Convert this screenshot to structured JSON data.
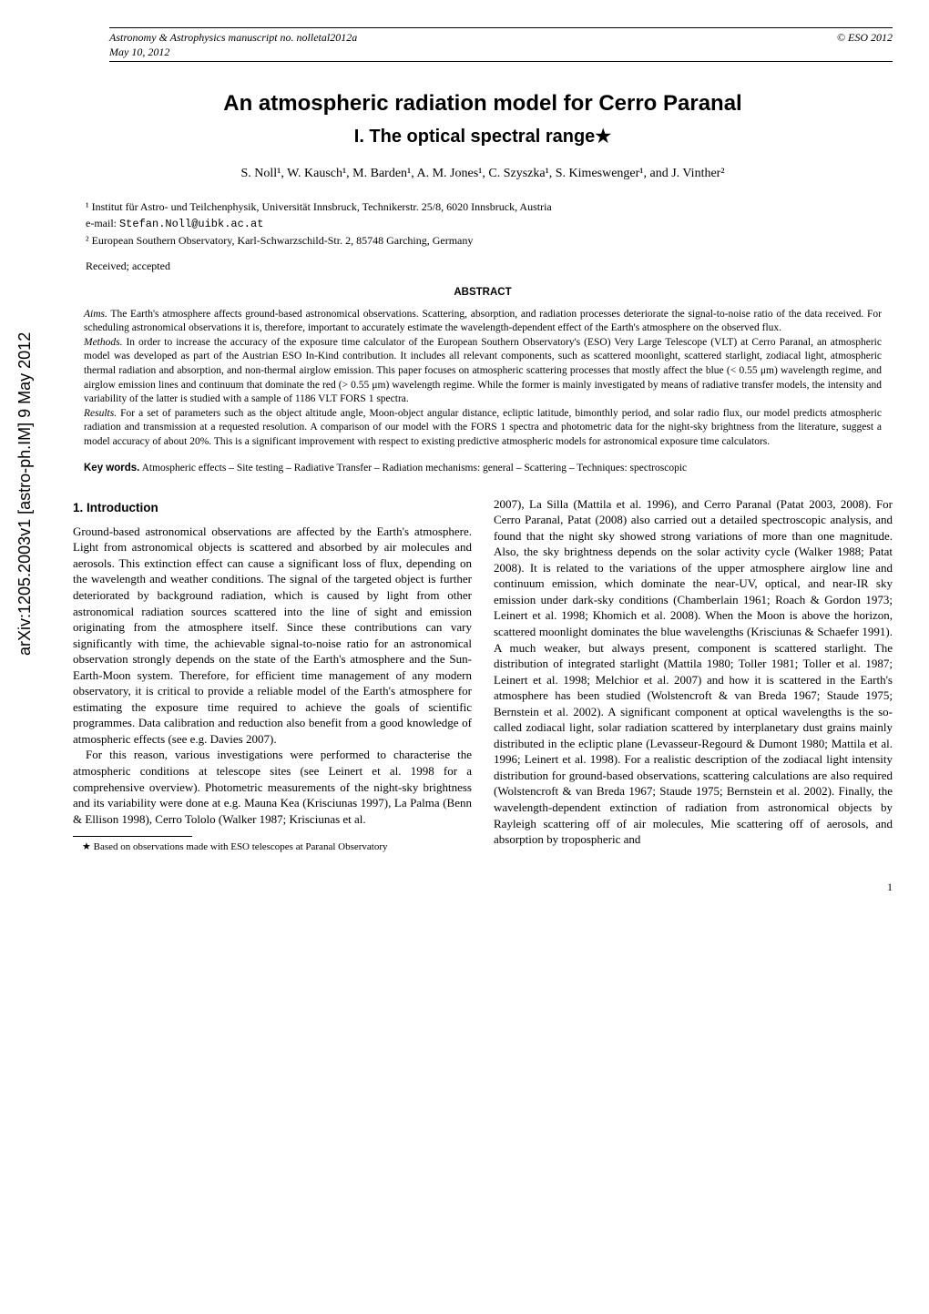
{
  "arxiv": "arXiv:1205.2003v1  [astro-ph.IM]  9 May 2012",
  "header": {
    "left": "Astronomy & Astrophysics manuscript no. nolletal2012a",
    "left2": "May 10, 2012",
    "right": "© ESO 2012"
  },
  "title": "An atmospheric radiation model for Cerro Paranal",
  "subtitle": "I. The optical spectral range",
  "subtitle_star": "★",
  "authors": "S. Noll¹, W. Kausch¹, M. Barden¹, A. M. Jones¹, C. Szyszka¹, S. Kimeswenger¹, and J. Vinther²",
  "aff1": "¹ Institut für Astro- und Teilchenphysik, Universität Innsbruck, Technikerstr. 25/8, 6020 Innsbruck, Austria",
  "email_label": "e-mail:",
  "email": "Stefan.Noll@uibk.ac.at",
  "aff2": "² European Southern Observatory, Karl-Schwarzschild-Str. 2, 85748 Garching, Germany",
  "received": "Received; accepted",
  "abstract_heading": "ABSTRACT",
  "abs": {
    "aims_label": "Aims.",
    "aims": " The Earth's atmosphere affects ground-based astronomical observations. Scattering, absorption, and radiation processes deteriorate the signal-to-noise ratio of the data received. For scheduling astronomical observations it is, therefore, important to accurately estimate the wavelength-dependent effect of the Earth's atmosphere on the observed flux.",
    "methods_label": "Methods.",
    "methods": " In order to increase the accuracy of the exposure time calculator of the European Southern Observatory's (ESO) Very Large Telescope (VLT) at Cerro Paranal, an atmospheric model was developed as part of the Austrian ESO In-Kind contribution. It includes all relevant components, such as scattered moonlight, scattered starlight, zodiacal light, atmospheric thermal radiation and absorption, and non-thermal airglow emission. This paper focuses on atmospheric scattering processes that mostly affect the blue (< 0.55 μm) wavelength regime, and airglow emission lines and continuum that dominate the red (> 0.55 μm) wavelength regime. While the former is mainly investigated by means of radiative transfer models, the intensity and variability of the latter is studied with a sample of 1186 VLT FORS 1 spectra.",
    "results_label": "Results.",
    "results": " For a set of parameters such as the object altitude angle, Moon-object angular distance, ecliptic latitude, bimonthly period, and solar radio flux, our model predicts atmospheric radiation and transmission at a requested resolution. A comparison of our model with the FORS 1 spectra and photometric data for the night-sky brightness from the literature, suggest a model accuracy of about 20%. This is a significant improvement with respect to existing predictive atmospheric models for astronomical exposure time calculators."
  },
  "kw_label": "Key words.",
  "kw": " Atmospheric effects – Site testing – Radiative Transfer – Radiation mechanisms: general – Scattering – Techniques: spectroscopic",
  "intro_heading": "1. Introduction",
  "left_p1": "Ground-based astronomical observations are affected by the Earth's atmosphere. Light from astronomical objects is scattered and absorbed by air molecules and aerosols. This extinction effect can cause a significant loss of flux, depending on the wavelength and weather conditions. The signal of the targeted object is further deteriorated by background radiation, which is caused by light from other astronomical radiation sources scattered into the line of sight and emission originating from the atmosphere itself. Since these contributions can vary significantly with time, the achievable signal-to-noise ratio for an astronomical observation strongly depends on the state of the Earth's atmosphere and the Sun-Earth-Moon system. Therefore, for efficient time management of any modern observatory, it is critical to provide a reliable model of the Earth's atmosphere for estimating the exposure time required to achieve the goals of scientific programmes. Data calibration and reduction also benefit from a good knowledge of atmospheric effects (see e.g. Davies 2007).",
  "left_p2": "For this reason, various investigations were performed to characterise the atmospheric conditions at telescope sites (see Leinert et al. 1998 for a comprehensive overview). Photometric measurements of the night-sky brightness and its variability were done at e.g. Mauna Kea (Krisciunas 1997), La Palma (Benn & Ellison 1998), Cerro Tololo (Walker 1987; Krisciunas et al.",
  "right_p1": "2007), La Silla (Mattila et al. 1996), and Cerro Paranal (Patat 2003, 2008). For Cerro Paranal, Patat (2008) also carried out a detailed spectroscopic analysis, and found that the night sky showed strong variations of more than one magnitude. Also, the sky brightness depends on the solar activity cycle (Walker 1988; Patat 2008). It is related to the variations of the upper atmosphere airglow line and continuum emission, which dominate the near-UV, optical, and near-IR sky emission under dark-sky conditions (Chamberlain 1961; Roach & Gordon 1973; Leinert et al. 1998; Khomich et al. 2008). When the Moon is above the horizon, scattered moonlight dominates the blue wavelengths (Krisciunas & Schaefer 1991). A much weaker, but always present, component is scattered starlight. The distribution of integrated starlight (Mattila 1980; Toller 1981; Toller et al. 1987; Leinert et al. 1998; Melchior et al. 2007) and how it is scattered in the Earth's atmosphere has been studied (Wolstencroft & van Breda 1967; Staude 1975; Bernstein et al. 2002). A significant component at optical wavelengths is the so-called zodiacal light, solar radiation scattered by interplanetary dust grains mainly distributed in the ecliptic plane (Levasseur-Regourd & Dumont 1980; Mattila et al. 1996; Leinert et al. 1998). For a realistic description of the zodiacal light intensity distribution for ground-based observations, scattering calculations are also required (Wolstencroft & van Breda 1967; Staude 1975; Bernstein et al. 2002). Finally, the wavelength-dependent extinction of radiation from astronomical objects by Rayleigh scattering off of air molecules, Mie scattering off of aerosols, and absorption by tropospheric and",
  "footnote": "★ Based on observations made with ESO telescopes at Paranal Observatory",
  "pagenum": "1"
}
